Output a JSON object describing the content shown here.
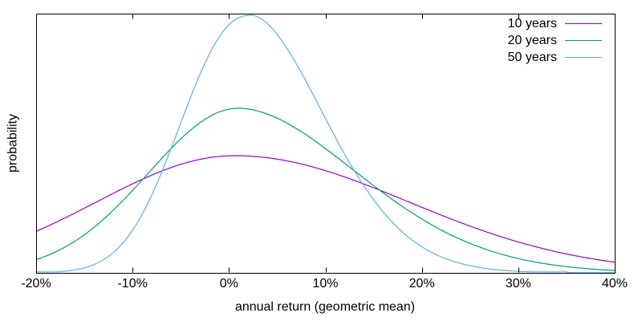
{
  "chart_data": {
    "type": "line",
    "title": "",
    "xlabel": "annual return (geometric mean)",
    "ylabel": "probability",
    "x_range_pct": [
      -20,
      40
    ],
    "x_ticks": [
      {
        "value": -20,
        "label": "-20%"
      },
      {
        "value": -10,
        "label": "-10%"
      },
      {
        "value": 0,
        "label": "0%"
      },
      {
        "value": 10,
        "label": "10%"
      },
      {
        "value": 20,
        "label": "20%"
      },
      {
        "value": 30,
        "label": "30%"
      },
      {
        "value": 40,
        "label": "40%"
      }
    ],
    "y_tick_labels": [],
    "grid": false,
    "legend_position": "top-right inside plot",
    "series": [
      {
        "name": "10 years",
        "color": "#9400D3",
        "mean_pct": 0.6,
        "sigma_left_pct": 14.3,
        "sigma_right_pct": 18.0,
        "shape_left": 2.0,
        "shape_right": 2.0,
        "peak_relative": 0.452
      },
      {
        "name": "20 years",
        "color": "#009E73",
        "mean_pct": 1.0,
        "sigma_left_pct": 9.35,
        "sigma_right_pct": 12.3,
        "shape_left": 2.0,
        "shape_right": 1.85,
        "peak_relative": 0.635
      },
      {
        "name": "50 years",
        "color": "#56B4E9",
        "mean_pct": 2.3,
        "sigma_left_pct": 7.05,
        "sigma_right_pct": 7.6,
        "shape_left": 2.3,
        "shape_right": 1.8,
        "peak_relative": 0.994,
        "hug_axis_until_pct": 35
      }
    ],
    "sample_points": {
      "x_pct": [
        -20,
        -15,
        -10,
        -5,
        0,
        5,
        10,
        15,
        20,
        25,
        30,
        35,
        40
      ],
      "relative_probability": {
        "10 years": [
          0.16,
          0.249,
          0.343,
          0.419,
          0.452,
          0.439,
          0.394,
          0.328,
          0.253,
          0.18,
          0.119,
          0.073,
          0.041
        ],
        "20 years": [
          0.051,
          0.147,
          0.318,
          0.517,
          0.631,
          0.596,
          0.479,
          0.337,
          0.208,
          0.113,
          0.055,
          0.023,
          0.009
        ],
        "50 years": [
          0.001,
          0.019,
          0.165,
          0.578,
          0.957,
          0.92,
          0.596,
          0.282,
          0.101,
          0.028,
          0.006,
          0.001,
          0.0
        ]
      }
    }
  }
}
